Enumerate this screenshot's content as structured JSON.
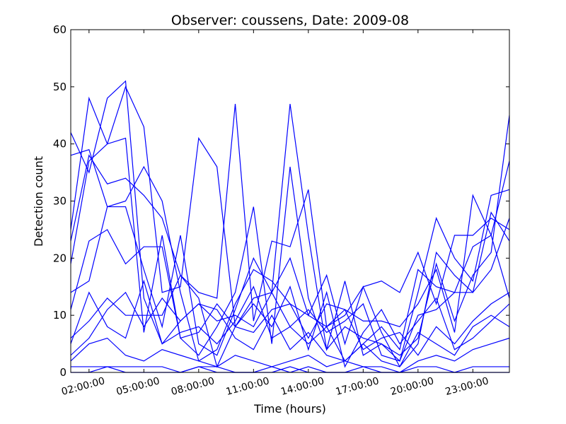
{
  "chart_data": {
    "type": "line",
    "title": "Observer: coussens, Date: 2009-08",
    "xlabel": "Time (hours)",
    "ylabel": "Detection count",
    "xlim": [
      1,
      25
    ],
    "ylim": [
      0,
      60
    ],
    "x_ticks": [
      {
        "value": 2,
        "label": "02:00:00"
      },
      {
        "value": 5,
        "label": "05:00:00"
      },
      {
        "value": 8,
        "label": "08:00:00"
      },
      {
        "value": 11,
        "label": "11:00:00"
      },
      {
        "value": 14,
        "label": "14:00:00"
      },
      {
        "value": 17,
        "label": "17:00:00"
      },
      {
        "value": 20,
        "label": "20:00:00"
      },
      {
        "value": 23,
        "label": "23:00:00"
      }
    ],
    "y_ticks": [
      0,
      10,
      20,
      30,
      40,
      50,
      60
    ],
    "line_color": "#0000ff",
    "grid": false,
    "x": [
      1,
      2,
      3,
      4,
      5,
      6,
      7,
      8,
      9,
      10,
      11,
      12,
      13,
      14,
      15,
      16,
      17,
      18,
      19,
      20,
      21,
      22,
      23,
      24,
      25
    ],
    "series": [
      {
        "values": [
          42,
          35,
          48,
          51,
          13,
          5,
          9,
          12,
          9,
          10,
          8,
          14,
          47,
          24,
          4,
          8,
          6,
          5,
          3,
          6,
          19,
          9,
          17,
          21,
          45
        ]
      },
      {
        "values": [
          38,
          39,
          29,
          30,
          36,
          30,
          14,
          2,
          4,
          12,
          18,
          16,
          12,
          10,
          8,
          2,
          5,
          8,
          4,
          18,
          15,
          14,
          22,
          24,
          37
        ]
      },
      {
        "values": [
          25,
          48,
          40,
          41,
          7,
          24,
          6,
          3,
          8,
          14,
          29,
          5,
          36,
          13,
          4,
          16,
          3,
          5,
          2,
          14,
          27,
          20,
          16,
          31,
          32
        ]
      },
      {
        "values": [
          23,
          38,
          33,
          34,
          31,
          27,
          17,
          14,
          13,
          47,
          9,
          23,
          22,
          32,
          8,
          10,
          15,
          16,
          14,
          21,
          12,
          24,
          24,
          27,
          25
        ]
      },
      {
        "values": [
          19,
          37,
          40,
          50,
          43,
          14,
          15,
          41,
          36,
          8,
          7,
          11,
          12,
          6,
          12,
          11,
          9,
          9,
          8,
          12,
          18,
          7,
          31,
          24,
          13
        ]
      },
      {
        "values": [
          14,
          16,
          29,
          29,
          18,
          8,
          24,
          5,
          3,
          11,
          20,
          14,
          20,
          10,
          17,
          5,
          15,
          7,
          1,
          5,
          21,
          17,
          14,
          28,
          23
        ]
      },
      {
        "values": [
          11,
          23,
          25,
          19,
          22,
          22,
          6,
          7,
          12,
          8,
          12,
          8,
          15,
          4,
          14,
          1,
          7,
          11,
          5,
          9,
          13,
          4,
          6,
          9,
          12
        ]
      },
      {
        "values": [
          6,
          9,
          13,
          10,
          10,
          10,
          17,
          13,
          1,
          8,
          13,
          14,
          8,
          11,
          7,
          9,
          12,
          3,
          2,
          10,
          11,
          14,
          14,
          18,
          27
        ]
      },
      {
        "values": [
          5,
          14,
          8,
          6,
          16,
          5,
          7,
          8,
          5,
          9,
          15,
          6,
          8,
          5,
          8,
          11,
          4,
          6,
          7,
          3,
          8,
          5,
          9,
          12,
          14
        ]
      },
      {
        "values": [
          3,
          6,
          11,
          14,
          8,
          13,
          9,
          12,
          11,
          6,
          4,
          10,
          4,
          7,
          3,
          2,
          5,
          2,
          1,
          7,
          5,
          3,
          8,
          10,
          8
        ]
      },
      {
        "values": [
          2,
          5,
          6,
          3,
          2,
          4,
          3,
          2,
          1,
          3,
          2,
          1,
          2,
          3,
          1,
          2,
          1,
          1,
          0,
          2,
          3,
          2,
          4,
          5,
          6
        ]
      },
      {
        "values": [
          1,
          1,
          1,
          1,
          1,
          1,
          0,
          1,
          1,
          0,
          0,
          1,
          0,
          1,
          0,
          0,
          1,
          0,
          0,
          1,
          1,
          0,
          1,
          1,
          1
        ]
      },
      {
        "values": [
          0,
          0,
          1,
          0,
          0,
          0,
          0,
          1,
          0,
          0,
          0,
          0,
          1,
          0,
          0,
          0,
          0,
          0,
          0,
          0,
          0,
          0,
          0,
          0,
          0
        ]
      }
    ]
  }
}
